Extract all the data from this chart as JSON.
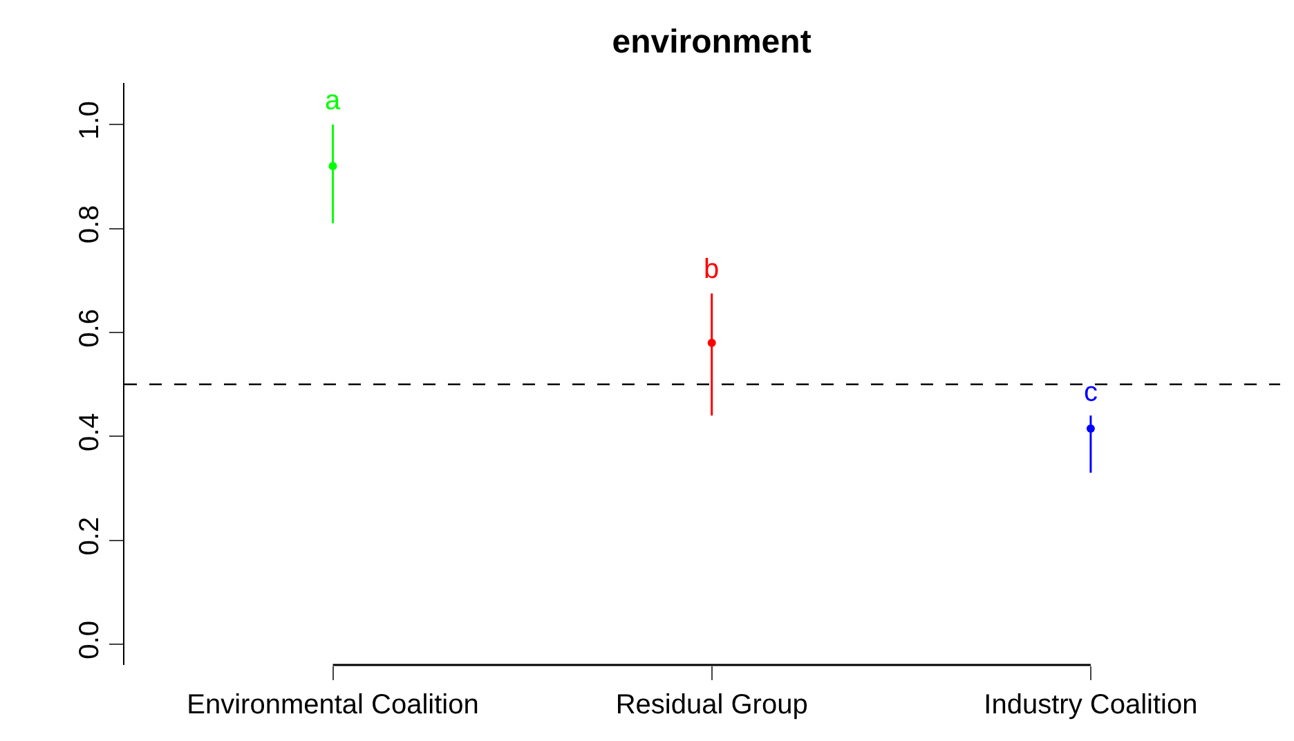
{
  "chart_data": {
    "type": "scatter",
    "title": "environment",
    "categories": [
      "Environmental Coalition",
      "Residual Group",
      "Industry Coalition"
    ],
    "values": [
      0.92,
      0.58,
      0.415
    ],
    "errors": [
      [
        0.81,
        1.0
      ],
      [
        0.44,
        0.675
      ],
      [
        0.33,
        0.44
      ]
    ],
    "colors": [
      "#00ff00",
      "#ff0000",
      "#0000ff"
    ],
    "marker": "circle",
    "ylim": [
      -0.04,
      1.08
    ],
    "yticks": [
      {
        "value": 0,
        "label": "0.0"
      },
      {
        "value": 0.2,
        "label": "0.2"
      },
      {
        "value": 0.4,
        "label": "0.4"
      },
      {
        "value": 0.6,
        "label": "0.6"
      },
      {
        "value": 0.8,
        "label": "0.8"
      },
      {
        "value": 1,
        "label": "1.0"
      }
    ],
    "ref_lines": [
      {
        "axis": "y",
        "value": 0.5,
        "line_style": "dashed",
        "color": "#000000"
      }
    ],
    "annotations": [
      "a",
      "b",
      "c"
    ]
  }
}
